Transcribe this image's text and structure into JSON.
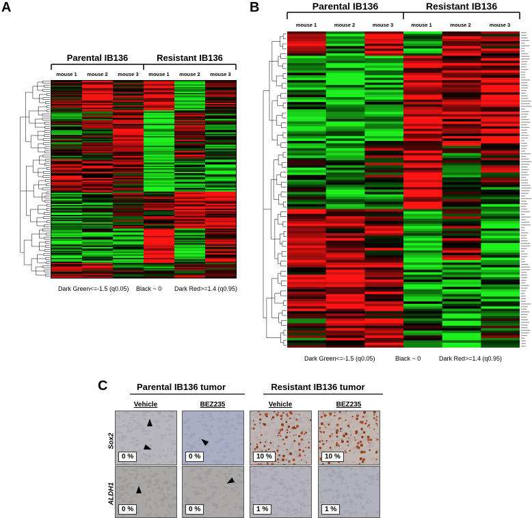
{
  "panels": {
    "a": {
      "letter": "A",
      "groups": [
        "Parental IB136",
        "Resistant IB136"
      ],
      "columns": [
        "mouse 1",
        "mouse 2",
        "mouse 3",
        "mouse 1",
        "mouse 2",
        "mouse 3"
      ],
      "legend": {
        "low": "Dark Green<=-1.5 (q0.05)",
        "mid": "Black ~ 0",
        "high": "Dark Red>=1.4 (q0.95)"
      }
    },
    "b": {
      "letter": "B",
      "groups": [
        "Parental IB136",
        "Resistant IB136"
      ],
      "columns": [
        "mouse 1",
        "mouse 2",
        "mouse 3",
        "mouse 1",
        "mouse 2",
        "mouse 3"
      ],
      "legend": {
        "low": "Dark Green<=-1.5 (q0.05)",
        "mid": "Black ~ 0",
        "high": "Dark Red>=1.4 (q0.95)"
      }
    },
    "c": {
      "letter": "C",
      "groups": [
        "Parental IB136 tumor",
        "Resistant IB136 tumor"
      ],
      "conditions": [
        "Vehicle",
        "BEZ235",
        "Vehicle",
        "BEZ235"
      ],
      "rows": [
        {
          "marker": "Sox2",
          "percents": [
            "0 %",
            "0 %",
            "10 %",
            "10 %"
          ]
        },
        {
          "marker": "ALDH1",
          "percents": [
            "0 %",
            "0 %",
            "1 %",
            "1 %"
          ]
        }
      ]
    }
  },
  "colors": {
    "red": "#ff2020",
    "green": "#22ee22",
    "black": "#000000"
  }
}
